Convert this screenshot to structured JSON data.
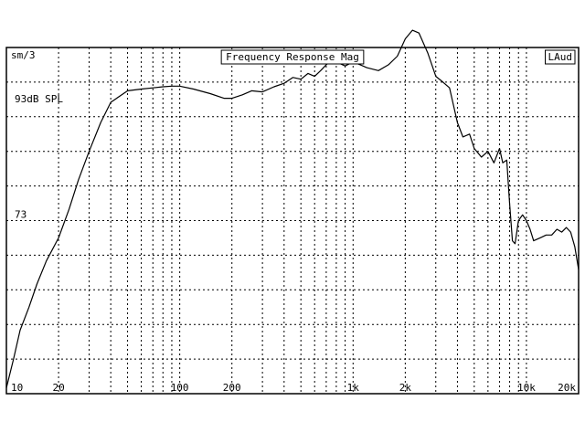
{
  "chart_data": {
    "type": "line",
    "title": "Frequency Response Mag",
    "badge_left": "sm/3",
    "badge_right": "LAud",
    "x_scale": "log",
    "xlim": [
      10,
      20000
    ],
    "ylim": [
      43,
      103
    ],
    "grid": true,
    "x_major_ticks": [
      {
        "value": 10,
        "label": "10"
      },
      {
        "value": 20,
        "label": "20"
      },
      {
        "value": 100,
        "label": "100"
      },
      {
        "value": 200,
        "label": "200"
      },
      {
        "value": 1000,
        "label": "1k"
      },
      {
        "value": 2000,
        "label": "2k"
      },
      {
        "value": 10000,
        "label": "10k"
      },
      {
        "value": 20000,
        "label": "20k"
      }
    ],
    "x_minor_ticks": [
      30,
      40,
      50,
      60,
      70,
      80,
      90,
      300,
      400,
      500,
      600,
      700,
      800,
      900,
      3000,
      4000,
      5000,
      6000,
      7000,
      8000,
      9000
    ],
    "y_gridlines": [
      43,
      49,
      55,
      61,
      67,
      73,
      79,
      85,
      91,
      97,
      103
    ],
    "y_labels": [
      {
        "value": 93,
        "label": "93dB SPL"
      },
      {
        "value": 73,
        "label": "73"
      }
    ],
    "series": [
      {
        "x": [
          10,
          11,
          12,
          13.5,
          15,
          17,
          20,
          23,
          26,
          30,
          35,
          40,
          50,
          60,
          70,
          80,
          90,
          100,
          120,
          150,
          180,
          200,
          230,
          260,
          300,
          350,
          400,
          450,
          500,
          550,
          600,
          650,
          700,
          750,
          800,
          900,
          1000,
          1100,
          1200,
          1400,
          1600,
          1800,
          2000,
          2200,
          2400,
          2700,
          3000,
          3300,
          3600,
          4000,
          4300,
          4700,
          5000,
          5500,
          6000,
          6500,
          7000,
          7300,
          7700,
          8000,
          8300,
          8600,
          9000,
          9500,
          10000,
          10500,
          11000,
          12000,
          13000,
          14000,
          15000,
          16000,
          17000,
          18000,
          19000,
          20000
        ],
        "y": [
          44,
          49,
          54,
          58,
          62,
          66,
          70,
          75,
          80,
          85,
          90,
          93.5,
          95.5,
          95.8,
          96,
          96.2,
          96.3,
          96.3,
          95.8,
          95,
          94.2,
          94.2,
          94.8,
          95.5,
          95.3,
          96.2,
          96.8,
          97.8,
          97.5,
          98.5,
          98,
          99,
          100,
          100.8,
          100.5,
          99.8,
          100.5,
          100,
          99.5,
          99,
          100,
          101.5,
          104.5,
          106,
          105.5,
          102,
          98,
          97,
          96,
          90,
          87.5,
          88,
          85.5,
          84,
          85,
          83,
          85.5,
          83,
          83.5,
          76,
          69.5,
          69,
          73,
          74,
          73,
          71.5,
          69.5,
          70,
          70.5,
          70.5,
          71.5,
          71,
          71.8,
          71,
          68.5,
          64.5
        ]
      }
    ]
  }
}
